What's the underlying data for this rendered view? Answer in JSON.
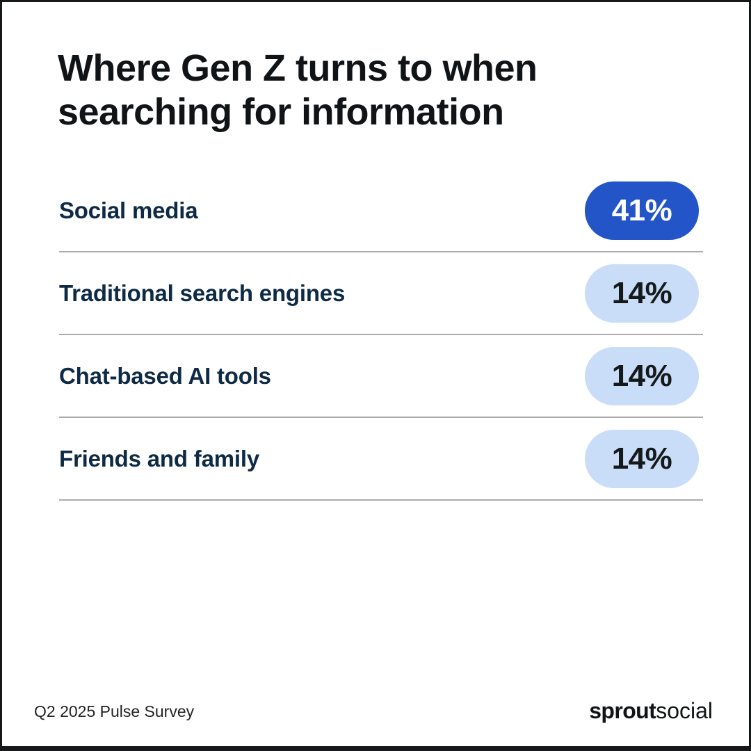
{
  "title": {
    "line1": "Where Gen Z turns to when",
    "line2": "searching for information"
  },
  "rows": [
    {
      "label": "Social media",
      "value": "41%",
      "highlight": true
    },
    {
      "label": "Traditional search engines",
      "value": "14%",
      "highlight": false
    },
    {
      "label": "Chat-based AI tools",
      "value": "14%",
      "highlight": false
    },
    {
      "label": "Friends and family",
      "value": "14%",
      "highlight": false
    }
  ],
  "footer": {
    "source": "Q2 2025 Pulse Survey",
    "brand_bold": "sprout",
    "brand_light": "social"
  },
  "colors": {
    "highlight_pill": "#2355c8",
    "muted_pill": "#c9ddf8",
    "label_navy": "#0e2a44",
    "title_black": "#111417",
    "divider_gray": "#ababab",
    "frame_border": "#16191a"
  },
  "chart_data": {
    "type": "bar",
    "title": "Where Gen Z turns to when searching for information",
    "categories": [
      "Social media",
      "Traditional search engines",
      "Chat-based AI tools",
      "Friends and family"
    ],
    "values": [
      41,
      14,
      14,
      14
    ],
    "unit": "%",
    "xlabel": "",
    "ylabel": "",
    "ylim": [
      0,
      100
    ],
    "legend": false,
    "grid": false,
    "source": "Q2 2025 Pulse Survey"
  }
}
